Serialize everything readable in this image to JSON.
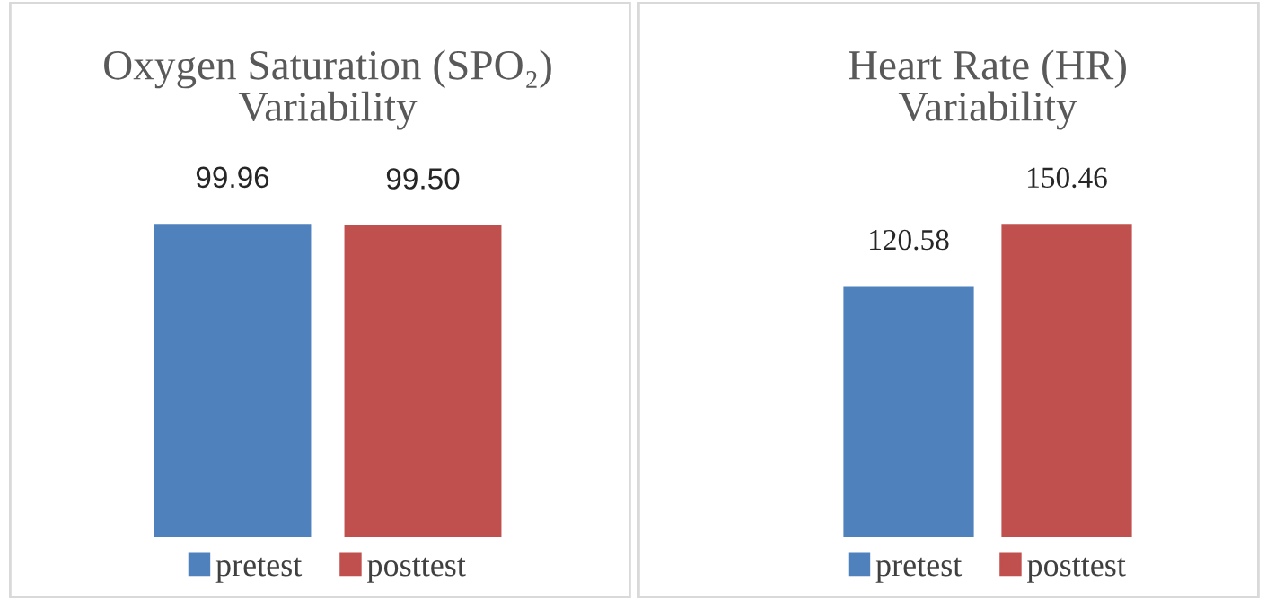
{
  "chart_data": [
    {
      "type": "bar",
      "title": "Oxygen Saturation (SPO₂)\nVariability",
      "categories": [
        null
      ],
      "series": [
        {
          "name": "pretest",
          "color": "#4f81bd",
          "values": [
            99.96
          ],
          "value_labels": [
            "99.96"
          ]
        },
        {
          "name": "posttest",
          "color": "#c0504d",
          "values": [
            99.5
          ],
          "value_labels": [
            "99.50"
          ]
        }
      ],
      "legend": "bottom"
    },
    {
      "type": "bar",
      "title": "Heart Rate (HR)\nVariability",
      "categories": [
        null
      ],
      "series": [
        {
          "name": "pretest",
          "color": "#4f81bd",
          "values": [
            120.58
          ]
        },
        {
          "name": "posttest",
          "color": "#c0504d",
          "values": [
            150.46
          ]
        }
      ],
      "data_labels": true,
      "legend": "bottom"
    }
  ]
}
